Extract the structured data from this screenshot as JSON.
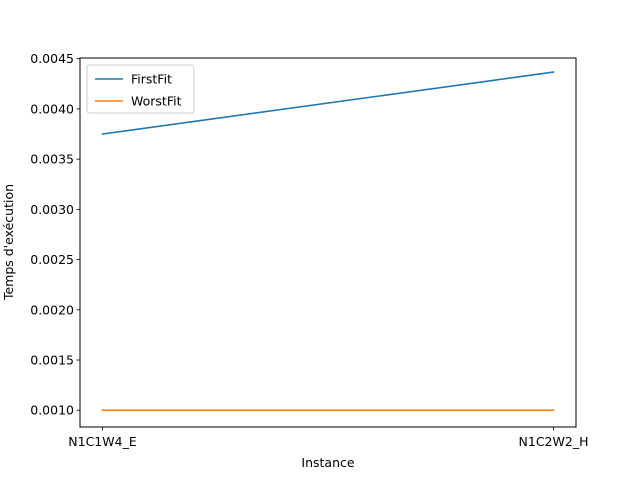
{
  "chart_data": {
    "type": "line",
    "title": "",
    "xlabel": "Instance",
    "ylabel": "Temps d'exécution",
    "categories": [
      "N1C1W4_E",
      "N1C2W2_H"
    ],
    "ylim": [
      0.000833,
      0.004507
    ],
    "yticks": [
      0.001,
      0.0015,
      0.002,
      0.0025,
      0.003,
      0.0035,
      0.004,
      0.0045
    ],
    "ytick_labels": [
      "0.0010",
      "0.0015",
      "0.0020",
      "0.0025",
      "0.0030",
      "0.0035",
      "0.0040",
      "0.0045"
    ],
    "grid": false,
    "legend_position": "top-left",
    "series": [
      {
        "name": "FirstFit",
        "color": "#1f77b4",
        "values": [
          0.00375,
          0.004367
        ]
      },
      {
        "name": "WorstFit",
        "color": "#ff7f0e",
        "values": [
          0.001,
          0.001
        ]
      }
    ]
  }
}
